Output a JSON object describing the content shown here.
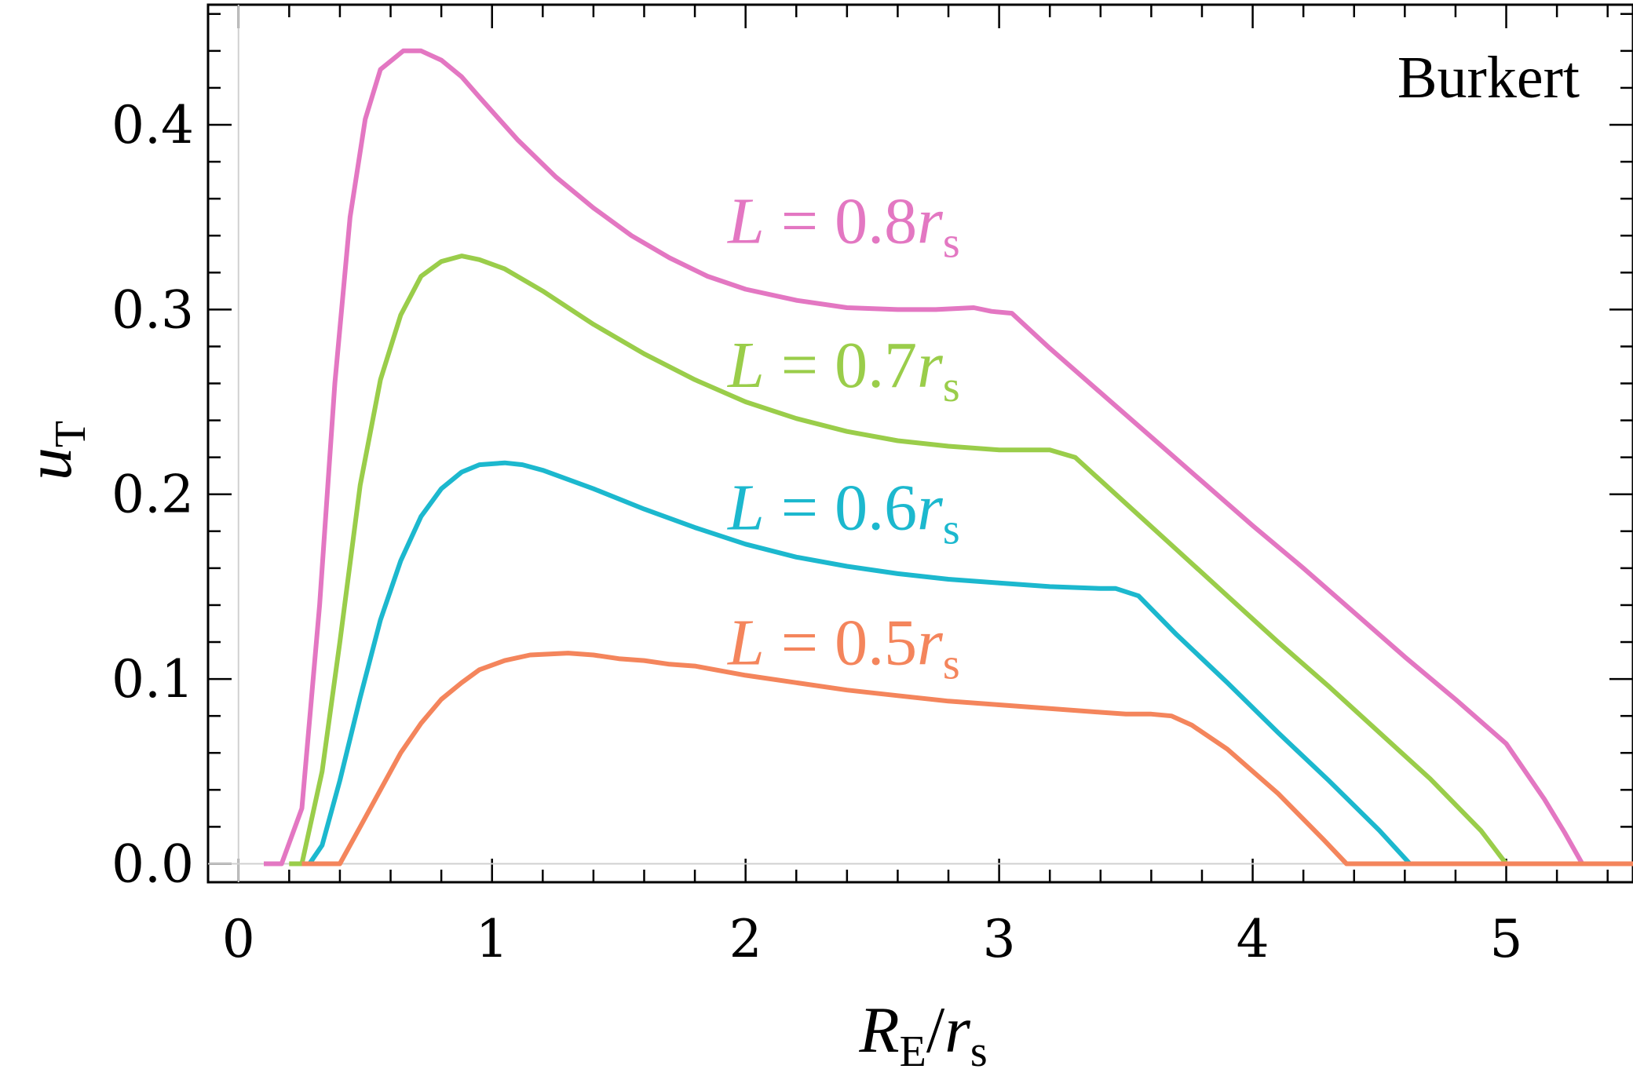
{
  "chart_data": {
    "type": "line",
    "annotation": "Burkert",
    "xlabel": {
      "main": "R",
      "sub": "E",
      "slash": "/",
      "main2": "r",
      "sub2": "s"
    },
    "ylabel": {
      "main": "u",
      "sub": "T"
    },
    "xlim": [
      -0.12,
      5.5
    ],
    "ylim": [
      -0.01,
      0.465
    ],
    "xticks": [
      0,
      1,
      2,
      3,
      4,
      5
    ],
    "xtick_labels": [
      "0",
      "1",
      "2",
      "3",
      "4",
      "5"
    ],
    "yticks": [
      0.0,
      0.1,
      0.2,
      0.3,
      0.4
    ],
    "ytick_labels": [
      "0.0",
      "0.1",
      "0.2",
      "0.3",
      "0.4"
    ],
    "grid": false,
    "series": [
      {
        "name": "L = 0.8r_s",
        "label": {
          "lhs": "L",
          "eq": " = ",
          "num": "0.8",
          "var": "r",
          "sub": "s"
        },
        "label_at": [
          1.93,
          0.336
        ],
        "color": "#e377c2",
        "x": [
          0.1,
          0.17,
          0.25,
          0.32,
          0.38,
          0.44,
          0.5,
          0.56,
          0.65,
          0.72,
          0.8,
          0.88,
          0.95,
          1.1,
          1.25,
          1.4,
          1.55,
          1.7,
          1.85,
          2.0,
          2.2,
          2.4,
          2.6,
          2.75,
          2.9,
          2.97,
          3.05,
          3.2,
          3.4,
          3.6,
          3.8,
          4.0,
          4.2,
          4.4,
          4.6,
          4.8,
          5.0,
          5.15,
          5.23,
          5.3,
          5.4,
          5.5
        ],
        "y": [
          0.0,
          0.0,
          0.03,
          0.14,
          0.26,
          0.35,
          0.403,
          0.43,
          0.44,
          0.44,
          0.435,
          0.426,
          0.415,
          0.392,
          0.372,
          0.355,
          0.34,
          0.328,
          0.318,
          0.311,
          0.305,
          0.301,
          0.3,
          0.3,
          0.301,
          0.299,
          0.298,
          0.279,
          0.255,
          0.231,
          0.207,
          0.183,
          0.16,
          0.136,
          0.112,
          0.089,
          0.065,
          0.035,
          0.017,
          0.0,
          0.0,
          0.0
        ]
      },
      {
        "name": "L = 0.7r_s",
        "label": {
          "lhs": "L",
          "eq": " = ",
          "num": "0.7",
          "var": "r",
          "sub": "s"
        },
        "label_at": [
          1.93,
          0.258
        ],
        "color": "#9acd4a",
        "x": [
          0.2,
          0.25,
          0.33,
          0.4,
          0.48,
          0.56,
          0.64,
          0.72,
          0.8,
          0.88,
          0.95,
          1.05,
          1.2,
          1.4,
          1.6,
          1.8,
          2.0,
          2.2,
          2.4,
          2.6,
          2.8,
          3.0,
          3.1,
          3.2,
          3.3,
          3.5,
          3.7,
          3.9,
          4.1,
          4.3,
          4.5,
          4.7,
          4.9,
          5.0,
          5.1,
          5.3,
          5.5
        ],
        "y": [
          0.0,
          0.0,
          0.05,
          0.12,
          0.205,
          0.262,
          0.297,
          0.318,
          0.326,
          0.329,
          0.327,
          0.322,
          0.31,
          0.292,
          0.276,
          0.262,
          0.25,
          0.241,
          0.234,
          0.229,
          0.226,
          0.224,
          0.224,
          0.224,
          0.22,
          0.195,
          0.17,
          0.145,
          0.12,
          0.096,
          0.071,
          0.046,
          0.018,
          0.0,
          0.0,
          0.0,
          0.0
        ]
      },
      {
        "name": "L = 0.6r_s",
        "label": {
          "lhs": "L",
          "eq": " = ",
          "num": "0.6",
          "var": "r",
          "sub": "s"
        },
        "label_at": [
          1.93,
          0.181
        ],
        "color": "#1cb8ce",
        "x": [
          0.25,
          0.28,
          0.33,
          0.4,
          0.48,
          0.56,
          0.64,
          0.72,
          0.8,
          0.88,
          0.95,
          1.05,
          1.12,
          1.2,
          1.4,
          1.6,
          1.8,
          2.0,
          2.2,
          2.4,
          2.6,
          2.8,
          3.0,
          3.2,
          3.4,
          3.46,
          3.55,
          3.7,
          3.9,
          4.1,
          4.3,
          4.5,
          4.62,
          4.7,
          4.8,
          5.0,
          5.5
        ],
        "y": [
          0.0,
          0.0,
          0.01,
          0.045,
          0.09,
          0.132,
          0.164,
          0.188,
          0.203,
          0.212,
          0.216,
          0.217,
          0.216,
          0.213,
          0.203,
          0.192,
          0.182,
          0.173,
          0.166,
          0.161,
          0.157,
          0.154,
          0.152,
          0.15,
          0.149,
          0.149,
          0.145,
          0.124,
          0.098,
          0.071,
          0.045,
          0.018,
          0.0,
          0.0,
          0.0,
          0.0,
          0.0
        ]
      },
      {
        "name": "L = 0.5r_s",
        "label": {
          "lhs": "L",
          "eq": " = ",
          "num": "0.5",
          "var": "r",
          "sub": "s"
        },
        "label_at": [
          1.93,
          0.108
        ],
        "color": "#f4855c",
        "x": [
          0.25,
          0.4,
          0.48,
          0.56,
          0.64,
          0.72,
          0.8,
          0.88,
          0.95,
          1.05,
          1.15,
          1.3,
          1.4,
          1.5,
          1.6,
          1.7,
          1.8,
          2.0,
          2.2,
          2.4,
          2.6,
          2.8,
          3.0,
          3.2,
          3.4,
          3.5,
          3.6,
          3.68,
          3.76,
          3.9,
          4.1,
          4.28,
          4.37,
          4.5,
          5.0,
          5.5
        ],
        "y": [
          0.0,
          0.0,
          0.02,
          0.04,
          0.06,
          0.076,
          0.089,
          0.098,
          0.105,
          0.11,
          0.113,
          0.114,
          0.113,
          0.111,
          0.11,
          0.108,
          0.107,
          0.102,
          0.098,
          0.094,
          0.091,
          0.088,
          0.086,
          0.084,
          0.082,
          0.081,
          0.081,
          0.08,
          0.075,
          0.062,
          0.038,
          0.013,
          0.0,
          0.0,
          0.0,
          0.0
        ]
      }
    ]
  }
}
